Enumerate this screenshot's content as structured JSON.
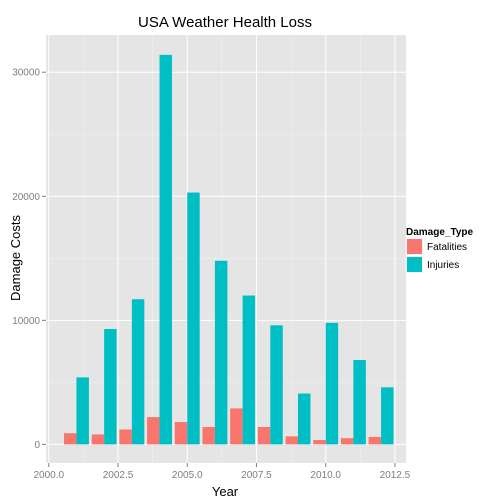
{
  "chart_data": {
    "type": "bar",
    "title": "USA Weather Health Loss",
    "xlabel": "Year",
    "ylabel": "Damage Costs",
    "xlim": [
      1999.9,
      2012.9
    ],
    "ylim": [
      -1500,
      33000
    ],
    "x_ticks": [
      2000,
      2002.5,
      2005,
      2007.5,
      2010,
      2012.5
    ],
    "x_tick_labels": [
      "2000.0",
      "2002.5",
      "2005.0",
      "2007.5",
      "2010.0",
      "2012.5"
    ],
    "y_ticks": [
      0,
      10000,
      20000,
      30000
    ],
    "y_tick_labels": [
      "0",
      "10000",
      "20000",
      "30000"
    ],
    "grid": true,
    "legend": {
      "title": "Damage_Type",
      "position": "right"
    },
    "x": [
      2001,
      2002,
      2003,
      2004,
      2005,
      2006,
      2007,
      2008,
      2009,
      2010,
      2011,
      2012
    ],
    "series": [
      {
        "name": "Fatalities",
        "color": "#f8766d",
        "values": [
          900,
          800,
          1200,
          2200,
          1800,
          1400,
          2900,
          1400,
          650,
          350,
          500,
          600
        ]
      },
      {
        "name": "Injuries",
        "color": "#00bfc4",
        "values": [
          5400,
          9300,
          11700,
          31400,
          20300,
          14800,
          12000,
          9600,
          4100,
          9800,
          6800,
          4600
        ]
      }
    ]
  }
}
